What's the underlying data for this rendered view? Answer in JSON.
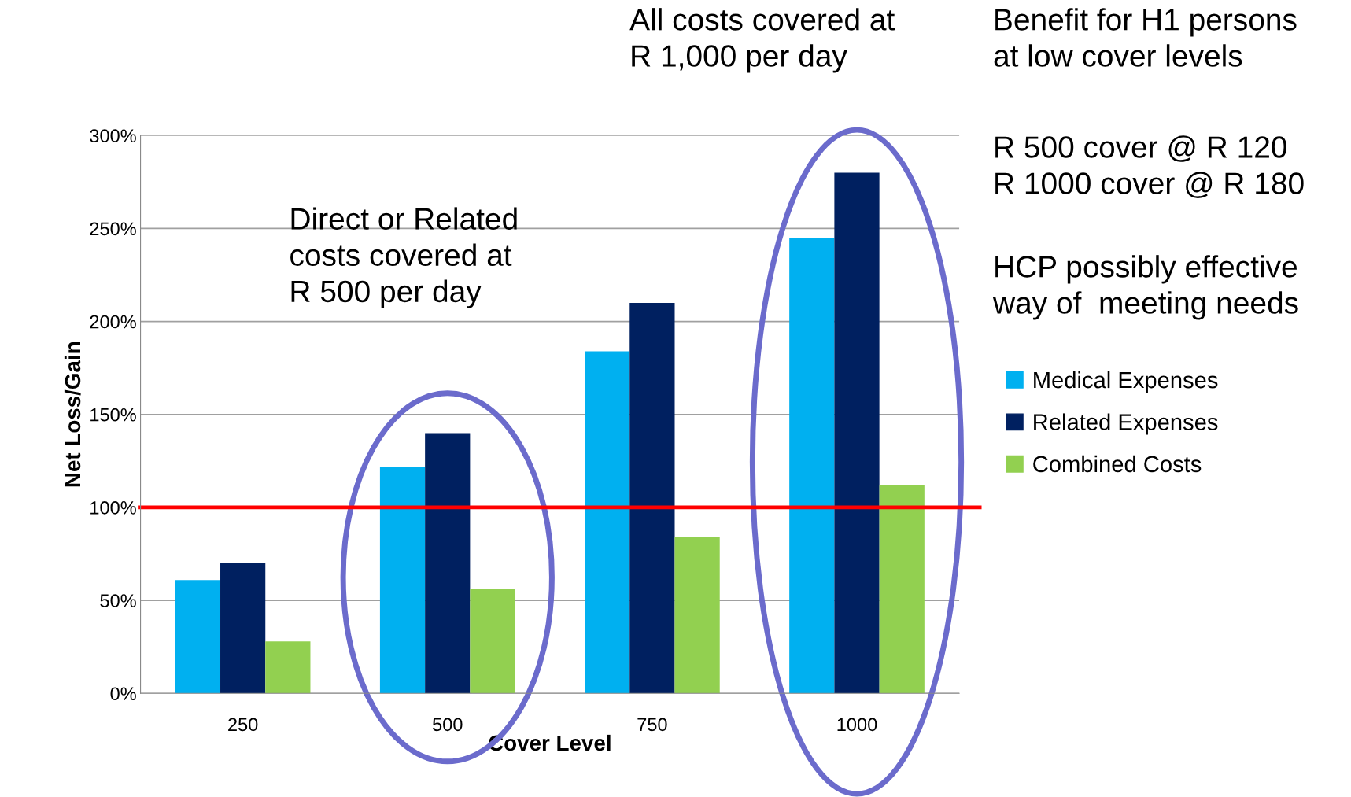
{
  "chart_data": {
    "type": "bar",
    "xlabel": "Cover Level",
    "ylabel": "Net Loss/Gain",
    "categories": [
      "250",
      "500",
      "750",
      "1000"
    ],
    "series": [
      {
        "name": "Medical Expenses",
        "color": "#00b0f0",
        "values": [
          61,
          122,
          184,
          245
        ]
      },
      {
        "name": "Related Expenses",
        "color": "#002060",
        "values": [
          70,
          140,
          210,
          280
        ]
      },
      {
        "name": "Combined Costs",
        "color": "#92d050",
        "values": [
          28,
          56,
          84,
          112
        ]
      }
    ],
    "ylim": [
      0,
      300
    ],
    "yticks": [
      {
        "value": 0,
        "label": "0%"
      },
      {
        "value": 50,
        "label": "50%"
      },
      {
        "value": 100,
        "label": "100%"
      },
      {
        "value": 150,
        "label": "150%"
      },
      {
        "value": 200,
        "label": "200%"
      },
      {
        "value": 250,
        "label": "250%"
      },
      {
        "value": 300,
        "label": "300%"
      }
    ],
    "grid": "y",
    "legend": "right",
    "ref_lines": [
      {
        "axis": "y",
        "value": 100,
        "color": "#ff0000"
      }
    ],
    "annotations": [
      "All costs covered at\nR 1,000 per day",
      "Direct or Related\ncosts covered at\nR 500 per day",
      "Benefit for H1 persons\nat low cover levels",
      "R 500 cover @ R 120\nR 1000 cover @ R 180",
      "HCP possibly effective\nway of  meeting needs"
    ]
  }
}
